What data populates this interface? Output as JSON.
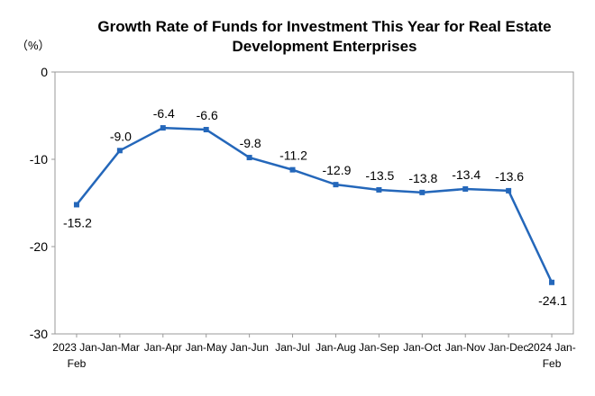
{
  "chart_data": {
    "type": "line",
    "title_lines": [
      "Growth Rate of Funds for Investment This Year for Real Estate",
      "Development Enterprises"
    ],
    "unit_label": "（%）",
    "categories": [
      [
        "2023 Jan-",
        "Feb"
      ],
      [
        "Jan-Mar"
      ],
      [
        "Jan-Apr"
      ],
      [
        "Jan-May"
      ],
      [
        "Jan-Jun"
      ],
      [
        "Jan-Jul"
      ],
      [
        "Jan-Aug"
      ],
      [
        "Jan-Sep"
      ],
      [
        "Jan-Oct"
      ],
      [
        "Jan-Nov"
      ],
      [
        "Jan-Dec"
      ],
      [
        "2024 Jan-",
        "Feb"
      ]
    ],
    "series": [
      {
        "values": [
          -15.2,
          -9.0,
          -6.4,
          -6.6,
          -9.8,
          -11.2,
          -12.9,
          -13.5,
          -13.8,
          -13.4,
          -13.6,
          -24.1
        ],
        "value_labels": [
          "-15.2",
          "-9.0",
          "-6.4",
          "-6.6",
          "-9.8",
          "-11.2",
          "-12.9",
          "-13.5",
          "-13.8",
          "-13.4",
          "-13.6",
          "-24.1"
        ],
        "label_position": [
          "below",
          "above",
          "above",
          "above",
          "above",
          "above",
          "above",
          "above",
          "above",
          "above",
          "above",
          "below"
        ],
        "color": "#2467BA"
      }
    ],
    "ylim": [
      -30,
      0
    ],
    "yticks": [
      0,
      -10,
      -20,
      -30
    ],
    "ytick_labels": [
      "0",
      "-10",
      "-20",
      "-30"
    ],
    "grid": false,
    "legend": "none",
    "frame_color": "#999999"
  }
}
